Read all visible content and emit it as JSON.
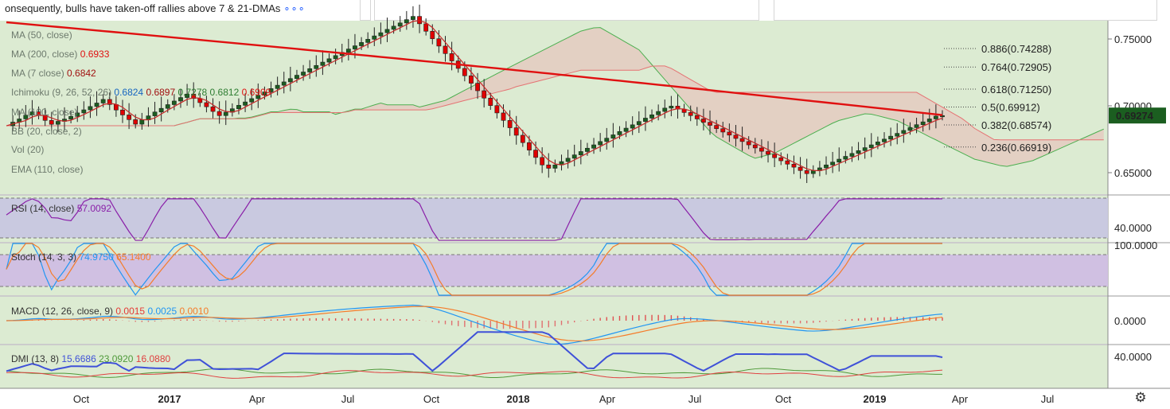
{
  "headline": {
    "text": "onsequently, bulls have taken-off rallies above 7 & 21-DMAs",
    "more_glyph": "∘∘∘"
  },
  "colors": {
    "pane_bg": "#dcebd2",
    "rsi_band": "#c9c9e0",
    "stoch_band": "#d0c0e2",
    "up_candle": "#1b5e20",
    "down_candle": "#e00000",
    "ma200": "#e01010",
    "cloud_bear": "#e6c7bd",
    "cloud_bull": "#bfe3b4",
    "rsi_line": "#8a1fa8",
    "stoch_k": "#2196f3",
    "stoch_d": "#f57c2a",
    "macd_line": "#2196f3",
    "signal_line": "#f57c2a",
    "dmi_adx": "#3f51d8",
    "dmi_plus": "#4f9a3a",
    "dmi_minus": "#e04040",
    "last_price_bg": "#1b5e20"
  },
  "chart_data": {
    "type": "line",
    "price_pane": {
      "legend": [
        {
          "label": "MA (50, close)",
          "value": "",
          "value_color": ""
        },
        {
          "label": "MA (200, close)",
          "value": "0.6933",
          "value_color": "#e01010"
        },
        {
          "label": "MA (7 close)",
          "value": "0.6842",
          "value_color": "#a01010"
        },
        {
          "label": "Ichimoku (9, 26, 52, 26)",
          "values": [
            "0.6824",
            "0.6897",
            "0.7278",
            "0.6812",
            "0.6909"
          ],
          "value_colors": [
            "#1565c0",
            "#a01010",
            "#2e7d32",
            "#2e7d32",
            "#e01010"
          ]
        },
        {
          "label": "MA (100, close)",
          "value": "",
          "value_color": ""
        },
        {
          "label": "BB (20, close, 2)",
          "value": "",
          "value_color": ""
        },
        {
          "label": "Vol (20)",
          "value": "",
          "value_color": ""
        },
        {
          "label": "EMA (110, close)",
          "value": "",
          "value_color": ""
        }
      ],
      "y_ticks": [
        "0.75000",
        "0.70000",
        "0.65000"
      ],
      "last_price": "0.69274",
      "fibonacci": [
        {
          "label": "0.886(0.74288)",
          "level": 0.74288
        },
        {
          "label": "0.764(0.72905)",
          "level": 0.72905
        },
        {
          "label": "0.618(0.71250)",
          "level": 0.7125
        },
        {
          "label": "0.5(0.69912)",
          "level": 0.69912
        },
        {
          "label": "0.382(0.68574)",
          "level": 0.68574
        },
        {
          "label": "0.236(0.66919)",
          "level": 0.66919
        }
      ],
      "weekly_close": [
        0.6851,
        0.6878,
        0.6902,
        0.693,
        0.6955,
        0.6931,
        0.6891,
        0.6862,
        0.6884,
        0.6901,
        0.6921,
        0.6947,
        0.697,
        0.6995,
        0.7021,
        0.7048,
        0.701,
        0.6969,
        0.6932,
        0.6897,
        0.6863,
        0.6895,
        0.6925,
        0.6954,
        0.6981,
        0.7009,
        0.7036,
        0.7062,
        0.7088,
        0.7055,
        0.7024,
        0.6993,
        0.6958,
        0.6927,
        0.6952,
        0.6978,
        0.7004,
        0.7029,
        0.7054,
        0.7079,
        0.7104,
        0.7129,
        0.7154,
        0.7179,
        0.7204,
        0.7229,
        0.7253,
        0.7278,
        0.7302,
        0.7327,
        0.7352,
        0.7376,
        0.74,
        0.7425,
        0.7449,
        0.7474,
        0.7498,
        0.7523,
        0.7547,
        0.7572,
        0.7596,
        0.762,
        0.7645,
        0.7669,
        0.7614,
        0.7558,
        0.7502,
        0.7447,
        0.7391,
        0.7336,
        0.728,
        0.7225,
        0.7169,
        0.7113,
        0.7058,
        0.7002,
        0.6947,
        0.6891,
        0.6836,
        0.678,
        0.6725,
        0.6669,
        0.6614,
        0.6558,
        0.6533,
        0.6558,
        0.6583,
        0.6608,
        0.6633,
        0.6658,
        0.6683,
        0.6708,
        0.6733,
        0.6758,
        0.6783,
        0.6808,
        0.6833,
        0.6858,
        0.6883,
        0.6908,
        0.6933,
        0.6958,
        0.6983,
        0.6998,
        0.6975,
        0.695,
        0.6927,
        0.6902,
        0.6877,
        0.6854,
        0.6829,
        0.6804,
        0.6781,
        0.6756,
        0.6733,
        0.6708,
        0.6685,
        0.666,
        0.6637,
        0.6612,
        0.6589,
        0.6564,
        0.6541,
        0.6516,
        0.6493,
        0.6515,
        0.6536,
        0.6558,
        0.6579,
        0.6601,
        0.6622,
        0.6644,
        0.6665,
        0.6687,
        0.6708,
        0.673,
        0.6751,
        0.6773,
        0.6794,
        0.6816,
        0.6837,
        0.6859,
        0.688,
        0.6902,
        0.6923,
        0.6927
      ]
    },
    "x_ticks": [
      "Oct",
      "2017",
      "Apr",
      "Jul",
      "Oct",
      "2018",
      "Apr",
      "Jul",
      "Oct",
      "2019",
      "Apr",
      "Jul"
    ],
    "rsi": {
      "label": "RSI (14, close)",
      "value": "57.0092",
      "y_tick": "40.0000",
      "range": [
        20,
        80
      ]
    },
    "stoch": {
      "label": "Stoch (14, 3, 3)",
      "k_value": "74.9750",
      "d_value": "65.1400",
      "y_tick": "100.0000",
      "range": [
        0,
        100
      ]
    },
    "macd": {
      "label": "MACD (12, 26, close, 9)",
      "hist_value": "0.0015",
      "macd_value": "0.0025",
      "signal_value": "0.0010",
      "y_tick": "0.0000"
    },
    "dmi": {
      "label": "DMI (13, 8)",
      "adx_value": "15.6686",
      "plus_value": "23.0920",
      "minus_value": "16.0880",
      "y_tick": "40.0000"
    }
  }
}
